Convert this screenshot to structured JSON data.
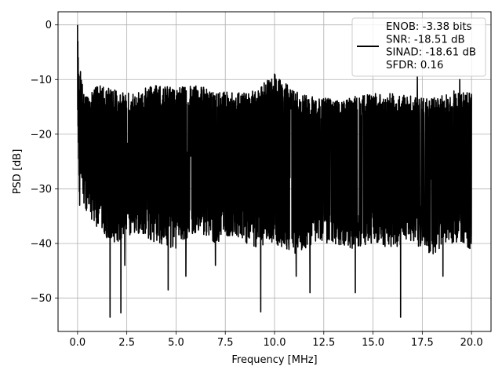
{
  "chart_data": {
    "type": "line",
    "xlabel": "Frequency [MHz]",
    "ylabel": "PSD [dB]",
    "xlim": [
      -0.99,
      20.99
    ],
    "ylim": [
      -56.1,
      2.4
    ],
    "grid": true,
    "legend_position": "top-right",
    "x_ticks": [
      0.0,
      2.5,
      5.0,
      7.5,
      10.0,
      12.5,
      15.0,
      17.5,
      20.0
    ],
    "x_tick_labels": [
      "0.0",
      "2.5",
      "5.0",
      "7.5",
      "10.0",
      "12.5",
      "15.0",
      "17.5",
      "20.0"
    ],
    "y_ticks": [
      0,
      -10,
      -20,
      -30,
      -40,
      -50
    ],
    "y_tick_labels": [
      "0",
      "−10",
      "−20",
      "−30",
      "−40",
      "−50"
    ],
    "legend": {
      "lines": [
        "ENOB: -3.38 bits",
        "SNR: -18.51 dB",
        "SINAD: -18.61 dB",
        "SFDR: 0.16"
      ]
    },
    "series": [
      {
        "color": "#000000",
        "x_range": [
          0,
          20
        ],
        "x": [
          0,
          0.15,
          0.3,
          0.6,
          1.0,
          1.2,
          1.6,
          1.62,
          2.2,
          2.4,
          3.0,
          3.7,
          4.6,
          5.0,
          5.4,
          6.0,
          7.0,
          8.0,
          9.0,
          9.3,
          10.0,
          11.0,
          11.8,
          12.5,
          13.0,
          14.0,
          14.1,
          15.0,
          16.0,
          16.4,
          17.0,
          18.0,
          18.6,
          19.0,
          20.0
        ],
        "y": [
          0,
          -5,
          -10,
          -13,
          -12,
          -15,
          -53.5,
          -20,
          -52.5,
          -12,
          -13,
          -11,
          -48.5,
          -12,
          -12.5,
          -11,
          -12,
          -13,
          -12,
          -52.5,
          -9,
          -13,
          -49.5,
          -12,
          -14,
          -13,
          -49,
          -12.5,
          -13,
          -53.5,
          -13,
          -14,
          -46,
          -15,
          -13
        ],
        "upper_envelope": {
          "x": [
            0,
            0.05,
            0.12,
            0.2,
            0.35,
            0.6,
            1.0,
            2.0,
            3.0,
            4.0,
            5.0,
            6.0,
            7.0,
            8.0,
            9.0,
            10.0,
            11.0,
            12.0,
            13.0,
            14.0,
            15.0,
            16.0,
            17.0,
            18.0,
            19.0,
            20.0
          ],
          "y": [
            0,
            -2,
            -6,
            -10,
            -12,
            -13,
            -11,
            -12,
            -12,
            -11,
            -11.5,
            -11,
            -12,
            -12.5,
            -12,
            -9,
            -12,
            -13,
            -13.5,
            -13,
            -12.5,
            -12.5,
            -13,
            -13.5,
            -12,
            -12.5
          ]
        },
        "lower_envelope": {
          "x": [
            0,
            0.2,
            0.4,
            1.0,
            2.0,
            3.0,
            4.0,
            5.0,
            6.0,
            7.0,
            8.0,
            9.0,
            10.0,
            11.0,
            12.0,
            13.0,
            14.0,
            15.0,
            16.0,
            17.0,
            18.0,
            19.0,
            20.0
          ],
          "y": [
            -16,
            -32,
            -35,
            -38,
            -40,
            -38,
            -40,
            -41,
            -38,
            -40,
            -39,
            -41,
            -40,
            -42,
            -40,
            -40,
            -41,
            -40,
            -41,
            -40,
            -42,
            -40,
            -41
          ]
        },
        "deep_dips": [
          {
            "x": 1.65,
            "y": -53.5
          },
          {
            "x": 2.2,
            "y": -52.7
          },
          {
            "x": 2.4,
            "y": -44.0
          },
          {
            "x": 4.6,
            "y": -48.5
          },
          {
            "x": 5.5,
            "y": -46.0
          },
          {
            "x": 7.0,
            "y": -44.0
          },
          {
            "x": 9.3,
            "y": -52.5
          },
          {
            "x": 11.1,
            "y": -46.0
          },
          {
            "x": 11.8,
            "y": -49.0
          },
          {
            "x": 14.1,
            "y": -49.0
          },
          {
            "x": 16.4,
            "y": -53.5
          },
          {
            "x": 18.55,
            "y": -46.0
          }
        ],
        "spikes": [
          {
            "x": 0.0,
            "y": 0.0
          },
          {
            "x": 10.0,
            "y": -9.0
          },
          {
            "x": 17.25,
            "y": -9.5
          },
          {
            "x": 19.4,
            "y": -10.0
          }
        ]
      }
    ]
  }
}
